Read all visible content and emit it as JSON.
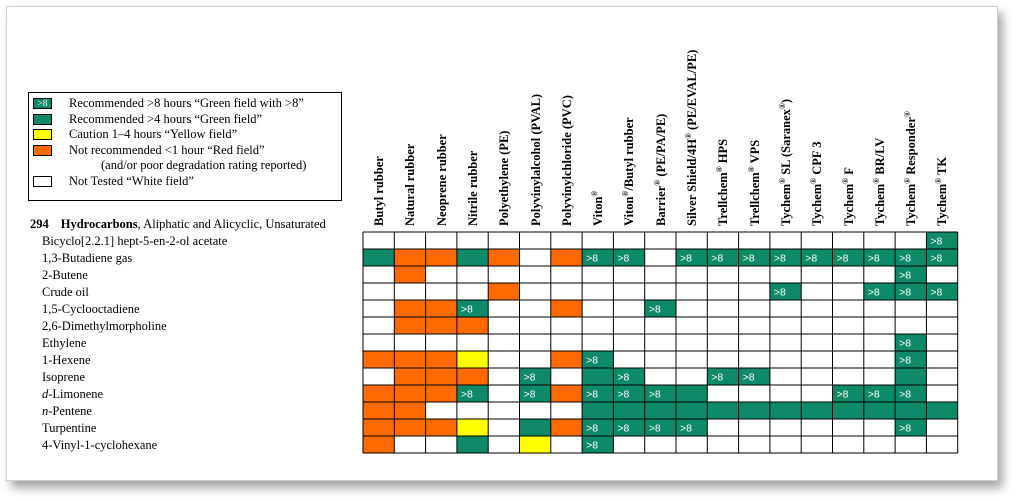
{
  "legend": {
    "items": [
      {
        "swatch": "green8",
        "swatch_text": ">8",
        "text": "Recommended >8 hours “Green field with >8”"
      },
      {
        "swatch": "green",
        "swatch_text": "",
        "text": "Recommended >4 hours “Green field”"
      },
      {
        "swatch": "yellow",
        "swatch_text": "",
        "text": "Caution 1–4 hours “Yellow field”"
      },
      {
        "swatch": "orange",
        "swatch_text": "",
        "text": "Not recommended <1 hour “Red field”"
      },
      {
        "swatch": "none",
        "swatch_text": "",
        "text": "(and/or poor degradation rating reported)"
      },
      {
        "swatch": "white",
        "swatch_text": "",
        "text": "Not Tested “White field”"
      }
    ]
  },
  "section": {
    "number": "294",
    "heading": "Hydrocarbons",
    "subheading": ", Aliphatic and Alicyclic, Unsaturated"
  },
  "colors": {
    "G": "#0e8a68",
    "O": "#ff6a00",
    "Y": "#ffff00",
    "W": "#ffffff",
    "grid": "#000000"
  },
  "columns": [
    {
      "name": "Butyl rubber",
      "sup": ""
    },
    {
      "name": "Natural rubber",
      "sup": ""
    },
    {
      "name": "Neoprene rubber",
      "sup": ""
    },
    {
      "name": "Nitrile rubber",
      "sup": ""
    },
    {
      "name": "Polyethylene (PE)",
      "sup": ""
    },
    {
      "name": "Polyvinylalcohol (PVAL)",
      "sup": ""
    },
    {
      "name": "Polyvinylchloride (PVC)",
      "sup": ""
    },
    {
      "name": "Viton",
      "sup": "®",
      "rest": ""
    },
    {
      "name": "Viton",
      "sup": "®",
      "rest": "/Butyl rubber"
    },
    {
      "name": "Barrier",
      "sup": "®",
      "rest": " (PE/PA/PE)"
    },
    {
      "name": "Silver Shield/4H",
      "sup": "®",
      "rest": " (PE/EVAL/PE)"
    },
    {
      "name": "Trellchem",
      "sup": "®",
      "rest": " HPS"
    },
    {
      "name": "Trellchem",
      "sup": "®",
      "rest": " VPS"
    },
    {
      "name": "Tychem",
      "sup": "®",
      "rest": " SL (Saranex",
      "sup2": "®",
      "rest2": ")"
    },
    {
      "name": "Tychem",
      "sup": "®",
      "rest": " CPF 3"
    },
    {
      "name": "Tychem",
      "sup": "®",
      "rest": " F"
    },
    {
      "name": "Tychem",
      "sup": "®",
      "rest": " BR/LV"
    },
    {
      "name": "Tychem",
      "sup": "®",
      "rest": " Responder",
      "sup2": "®",
      "rest2": ""
    },
    {
      "name": "Tychem",
      "sup": "®",
      "rest": " TK"
    }
  ],
  "chemicals": [
    {
      "name": "Bicyclo[2.2.1] hept-5-en-2-ol acetate",
      "italic_prefix": ""
    },
    {
      "name": "1,3-Butadiene gas",
      "italic_prefix": ""
    },
    {
      "name": "2-Butene",
      "italic_prefix": ""
    },
    {
      "name": "Crude oil",
      "italic_prefix": ""
    },
    {
      "name": "1,5-Cyclooctadiene",
      "italic_prefix": ""
    },
    {
      "name": "2,6-Dimethylmorpholine",
      "italic_prefix": ""
    },
    {
      "name": "Ethylene",
      "italic_prefix": ""
    },
    {
      "name": "1-Hexene",
      "italic_prefix": ""
    },
    {
      "name": "Isoprene",
      "italic_prefix": ""
    },
    {
      "name": "-Limonene",
      "italic_prefix": "d"
    },
    {
      "name": "-Pentene",
      "italic_prefix": "n"
    },
    {
      "name": "Turpentine",
      "italic_prefix": ""
    },
    {
      "name": "4-Vinyl-1-cyclohexane",
      "italic_prefix": ""
    }
  ],
  "grid_rows": [
    [
      "W",
      "W",
      "W",
      "W",
      "W",
      "W",
      "W",
      "W",
      "W",
      "W",
      "W",
      "W",
      "W",
      "W",
      "W",
      "W",
      "W",
      "W",
      "G8"
    ],
    [
      "G",
      "O",
      "O",
      "G",
      "O",
      "W",
      "O",
      "G8",
      "G8",
      "W",
      "G8",
      "G8",
      "G8",
      "G8",
      "G8",
      "G8",
      "G8",
      "G8",
      "G8"
    ],
    [
      "W",
      "O",
      "W",
      "W",
      "W",
      "W",
      "W",
      "W",
      "W",
      "W",
      "W",
      "W",
      "W",
      "W",
      "W",
      "W",
      "W",
      "G8",
      "W"
    ],
    [
      "W",
      "W",
      "W",
      "W",
      "O",
      "W",
      "W",
      "W",
      "W",
      "W",
      "W",
      "W",
      "W",
      "G8",
      "W",
      "W",
      "G8",
      "G8",
      "G8"
    ],
    [
      "W",
      "O",
      "O",
      "G8",
      "W",
      "W",
      "O",
      "W",
      "W",
      "G8",
      "W",
      "W",
      "W",
      "W",
      "W",
      "W",
      "W",
      "W",
      "W"
    ],
    [
      "W",
      "O",
      "O",
      "O",
      "W",
      "W",
      "W",
      "W",
      "W",
      "W",
      "W",
      "W",
      "W",
      "W",
      "W",
      "W",
      "W",
      "W",
      "W"
    ],
    [
      "W",
      "W",
      "W",
      "W",
      "W",
      "W",
      "W",
      "W",
      "W",
      "W",
      "W",
      "W",
      "W",
      "W",
      "W",
      "W",
      "W",
      "G8",
      "W"
    ],
    [
      "O",
      "O",
      "O",
      "Y",
      "W",
      "W",
      "O",
      "G8",
      "W",
      "W",
      "W",
      "W",
      "W",
      "W",
      "W",
      "W",
      "W",
      "G8",
      "W"
    ],
    [
      "W",
      "O",
      "O",
      "O",
      "W",
      "G8",
      "W",
      "G",
      "G8",
      "W",
      "W",
      "G8",
      "G8",
      "W",
      "W",
      "W",
      "W",
      "G",
      "W"
    ],
    [
      "O",
      "O",
      "O",
      "G8",
      "W",
      "G8",
      "O",
      "G8",
      "G8",
      "G8",
      "G",
      "W",
      "W",
      "W",
      "W",
      "G8",
      "G8",
      "G8",
      "W"
    ],
    [
      "O",
      "O",
      "W",
      "W",
      "W",
      "W",
      "W",
      "G",
      "G",
      "G",
      "G",
      "G",
      "G",
      "G",
      "G",
      "G",
      "G",
      "G",
      "G"
    ],
    [
      "O",
      "O",
      "O",
      "Y",
      "W",
      "G",
      "O",
      "G8",
      "G8",
      "G8",
      "G8",
      "W",
      "W",
      "W",
      "W",
      "W",
      "W",
      "G8",
      "W"
    ],
    [
      "O",
      "W",
      "W",
      "G",
      "W",
      "Y",
      "W",
      "G8",
      "W",
      "W",
      "W",
      "W",
      "W",
      "W",
      "W",
      "W",
      "W",
      "W",
      "W"
    ]
  ],
  "cell_label": ">8"
}
